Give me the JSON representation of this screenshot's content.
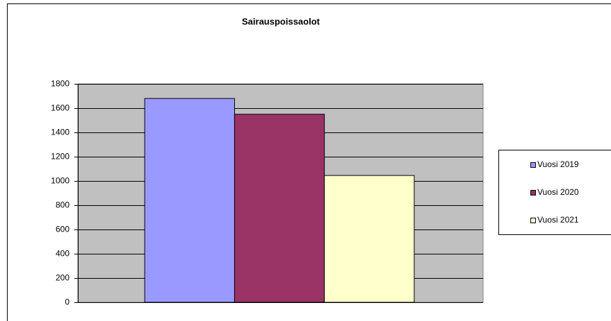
{
  "chart_data": {
    "type": "bar",
    "title": "Sairauspoissaolot",
    "categories": [
      null
    ],
    "series": [
      {
        "name": "Vuosi 2019",
        "color": "#9999ff",
        "values": [
          1680
        ]
      },
      {
        "name": "Vuosi 2020",
        "color": "#993366",
        "values": [
          1550
        ]
      },
      {
        "name": "Vuosi 2021",
        "color": "#ffffcc",
        "values": [
          1045
        ]
      }
    ],
    "ylim": [
      0,
      1800
    ],
    "yticks": [
      0,
      200,
      400,
      600,
      800,
      1000,
      1200,
      1400,
      1600,
      1800
    ],
    "grid": true,
    "legend": "right"
  }
}
